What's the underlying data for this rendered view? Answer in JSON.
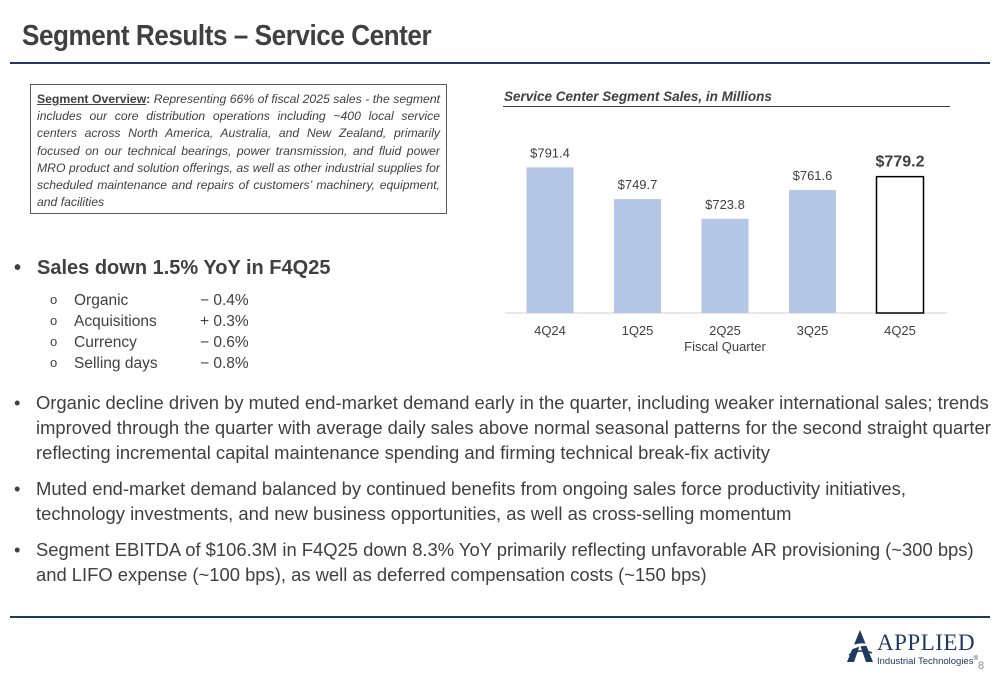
{
  "title": "Segment Results – Service Center",
  "overview": {
    "lead": "Segment Overview",
    "colon": ":",
    "text": " Representing 66% of fiscal 2025 sales - the segment includes our core distribution operations including ~400 local service centers across North America, Australia, and New Zealand, primarily focused on our technical bearings, power transmission, and fluid power MRO product and solution offerings, as well as other industrial supplies for scheduled maintenance and repairs of customers’ machinery, equipment, and facilities"
  },
  "chart_data": {
    "type": "bar",
    "title": "Service Center Segment Sales, in Millions",
    "xlabel": "Fiscal Quarter",
    "ylabel": "",
    "categories": [
      "4Q24",
      "1Q25",
      "2Q25",
      "3Q25",
      "4Q25"
    ],
    "values": [
      791.4,
      749.7,
      723.8,
      761.6,
      779.2
    ],
    "value_labels": [
      "$791.4",
      "$749.7",
      "$723.8",
      "$761.6",
      "$779.2"
    ],
    "highlight_index": 4,
    "ylim": [
      600,
      830
    ],
    "colors": {
      "bar": "#b4c7e7",
      "highlight_bar": "#ffffff",
      "highlight_border": "#000000"
    }
  },
  "sales": {
    "bullet": "•",
    "headline": "Sales down 1.5% YoY in F4Q25",
    "items": [
      {
        "marker": "o",
        "label": "Organic",
        "value": "− 0.4%"
      },
      {
        "marker": "o",
        "label": "Acquisitions",
        "value": "+ 0.3%"
      },
      {
        "marker": "o",
        "label": "Currency",
        "value": "− 0.6%"
      },
      {
        "marker": "o",
        "label": "Selling days",
        "value": "− 0.8%"
      }
    ]
  },
  "bullets": [
    {
      "dot": "•",
      "text": "Organic decline driven by muted end-market demand early in the quarter, including weaker international sales; trends improved through the quarter with average daily sales above normal seasonal patterns for the second straight quarter reflecting incremental capital maintenance spending and firming technical break-fix activity"
    },
    {
      "dot": "•",
      "text": "Muted end-market demand balanced by continued benefits from ongoing sales force productivity initiatives, technology investments, and new business opportunities, as well as cross-selling momentum"
    },
    {
      "dot": "•",
      "text": "Segment EBITDA of $106.3M in F4Q25 down 8.3% YoY primarily reflecting unfavorable AR provisioning (~300 bps) and LIFO expense (~100 bps), as well as deferred compensation costs (~150 bps)"
    }
  ],
  "logo": {
    "word": "APPLIED",
    "sub": "Industrial Technologies",
    "mark": "®"
  },
  "page_number": "8",
  "colors": {
    "accent": "#1f3a60",
    "text": "#404040"
  }
}
